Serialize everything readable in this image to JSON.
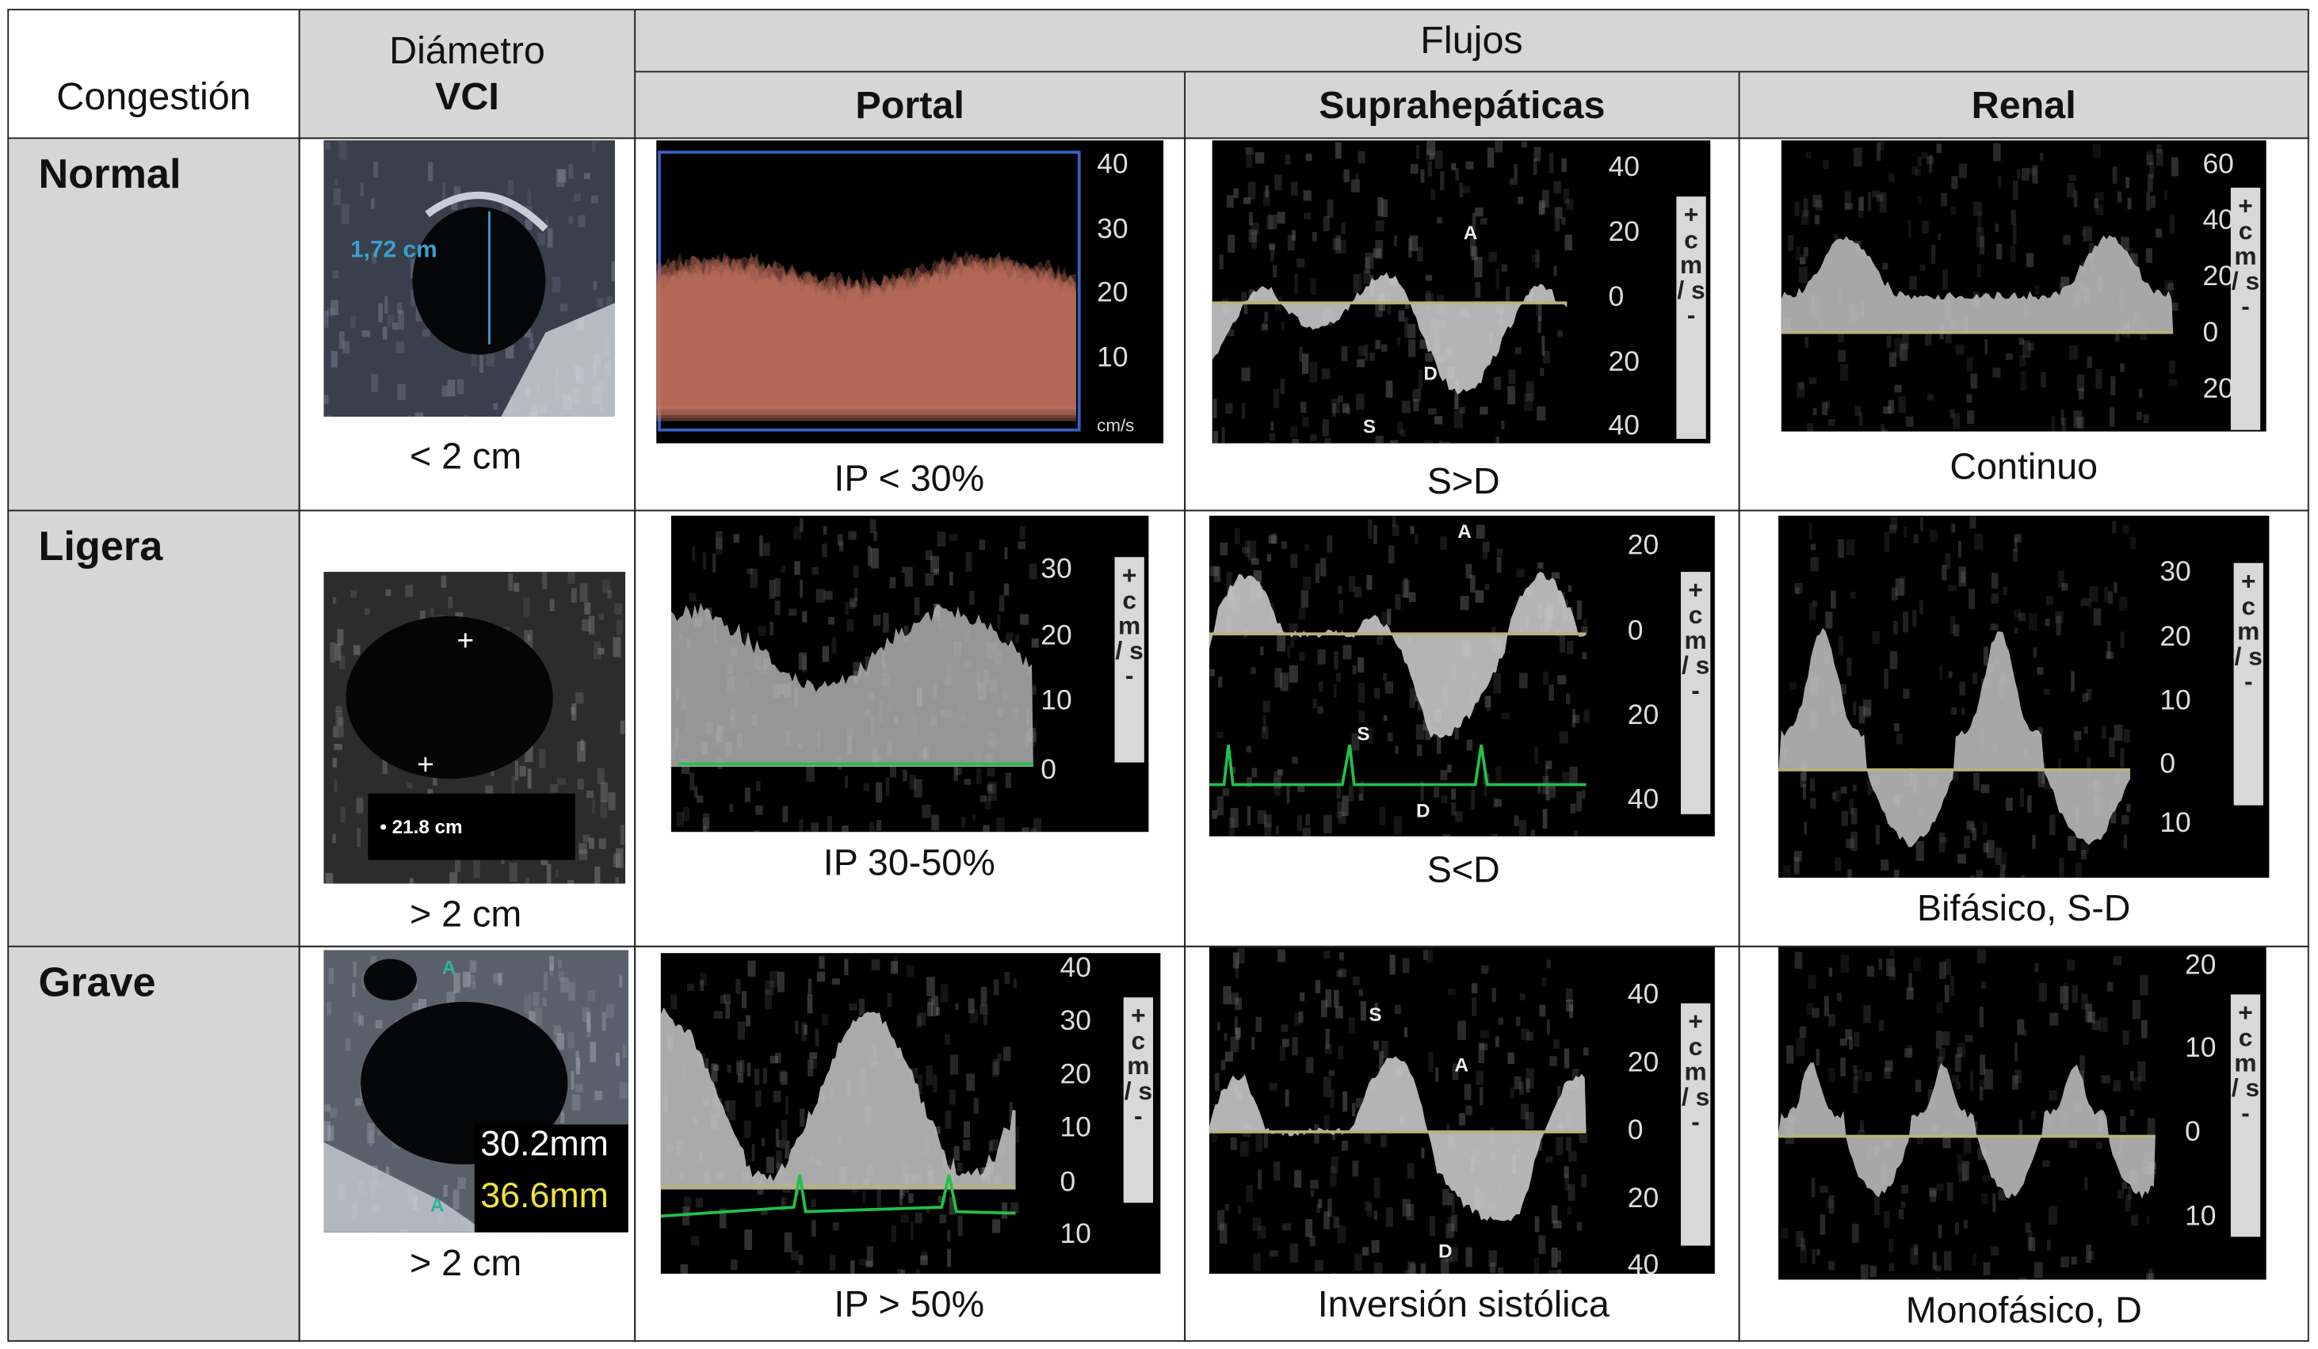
{
  "header": {
    "congestion": "Congestión",
    "diameter_line1": "Diámetro",
    "diameter_line2": "VCI",
    "flows": "Flujos",
    "portal": "Portal",
    "suprahepatic": "Suprahepáticas",
    "renal": "Renal"
  },
  "rows": [
    {
      "label": "Normal",
      "vci_caption": "< 2 cm",
      "portal_caption": "IP < 30%",
      "supra_caption": "S>D",
      "renal_caption": "Continuo",
      "vci_measure": "1,72 cm",
      "portal_ticks": [
        "40",
        "30",
        "20",
        "10",
        "cm/s"
      ],
      "supra_ticks": [
        "40",
        "20",
        "0",
        "20",
        "40"
      ],
      "supra_marks": [
        "A",
        "D",
        "S"
      ],
      "renal_ticks": [
        "60",
        "40",
        "20",
        "0",
        "20"
      ]
    },
    {
      "label": "Ligera",
      "vci_caption": "> 2 cm",
      "portal_caption": "IP 30-50%",
      "supra_caption": "S<D",
      "renal_caption": "Bifásico, S-D",
      "vci_measure": "• 21.8 cm",
      "portal_ticks": [
        "30",
        "20",
        "10",
        "0"
      ],
      "supra_ticks": [
        "20",
        "0",
        "20",
        "40"
      ],
      "supra_marks": [
        "A",
        "S",
        "D"
      ],
      "renal_ticks": [
        "30",
        "20",
        "10",
        "0",
        "10"
      ]
    },
    {
      "label": "Grave",
      "vci_caption": "> 2 cm",
      "portal_caption": "IP > 50%",
      "supra_caption": "Inversión sistólica",
      "renal_caption": "Monofásico, D",
      "vci_measure": "30.2mm",
      "vci_measure2": "36.6mm",
      "vci_marks": [
        "A",
        "A"
      ],
      "portal_ticks": [
        "40",
        "30",
        "20",
        "10",
        "0",
        "10"
      ],
      "supra_ticks": [
        "40",
        "20",
        "0",
        "20",
        "40"
      ],
      "supra_marks": [
        "S",
        "A",
        "D"
      ],
      "renal_ticks": [
        "20",
        "10",
        "0",
        "10"
      ]
    }
  ],
  "unit_label": "+ c m / s -",
  "colors": {
    "header_bg": "#d6d6d6",
    "portal_normal_doppler": "#e08a78",
    "baseline": "#b9b27a",
    "ecg": "#22c04a",
    "vci_measure_blue": "#3a9fd0",
    "vci_measure_yellow": "#f0e040"
  }
}
